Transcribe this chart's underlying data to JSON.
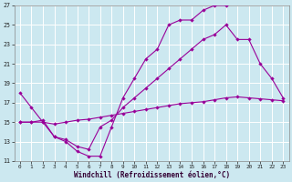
{
  "xlabel": "Windchill (Refroidissement éolien,°C)",
  "bg_color": "#cce8f0",
  "line_color": "#990099",
  "grid_color": "#ffffff",
  "xmin": 0,
  "xmax": 23,
  "ymin": 11,
  "ymax": 27,
  "yticks": [
    11,
    13,
    15,
    17,
    19,
    21,
    23,
    25,
    27
  ],
  "xticks": [
    0,
    1,
    2,
    3,
    4,
    5,
    6,
    7,
    8,
    9,
    10,
    11,
    12,
    13,
    14,
    15,
    16,
    17,
    18,
    19,
    20,
    21,
    22,
    23
  ],
  "line1_x": [
    0,
    1,
    2,
    3,
    4,
    5,
    6,
    7,
    8,
    9,
    10,
    11,
    12,
    13,
    14,
    15,
    16,
    17,
    18
  ],
  "line1_y": [
    18.0,
    16.5,
    15.0,
    13.5,
    13.0,
    12.0,
    11.5,
    11.5,
    14.5,
    17.5,
    19.5,
    21.5,
    22.5,
    25.0,
    25.5,
    25.5,
    26.5,
    27.0,
    27.0
  ],
  "line2_x": [
    0,
    1,
    2,
    3,
    4,
    5,
    6,
    7,
    8,
    9,
    10,
    11,
    12,
    13,
    14,
    15,
    16,
    17,
    18,
    19,
    20,
    21,
    22,
    23
  ],
  "line2_y": [
    15.0,
    15.0,
    15.2,
    13.5,
    13.2,
    12.5,
    12.2,
    14.5,
    15.2,
    16.5,
    17.5,
    18.5,
    19.5,
    20.5,
    21.5,
    22.5,
    23.5,
    24.0,
    25.0,
    23.5,
    23.5,
    21.0,
    19.5,
    17.5
  ],
  "line3_x": [
    0,
    1,
    2,
    3,
    4,
    5,
    6,
    7,
    8,
    9,
    10,
    11,
    12,
    13,
    14,
    15,
    16,
    17,
    18,
    19,
    20,
    21,
    22,
    23
  ],
  "line3_y": [
    15.0,
    15.0,
    15.0,
    14.8,
    15.0,
    15.2,
    15.3,
    15.5,
    15.7,
    15.9,
    16.1,
    16.3,
    16.5,
    16.7,
    16.9,
    17.0,
    17.1,
    17.3,
    17.5,
    17.6,
    17.5,
    17.4,
    17.3,
    17.2
  ]
}
